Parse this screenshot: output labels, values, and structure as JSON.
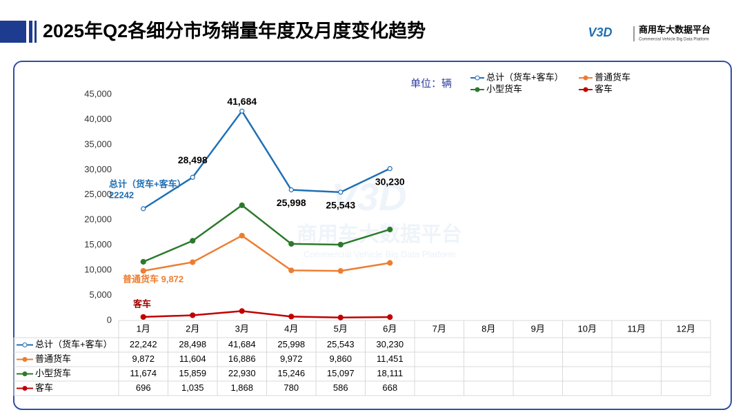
{
  "chart_data": {
    "type": "line",
    "title": "2025年Q2各细分市场销量年度及月度变化趋势",
    "unit_label": "单位：辆",
    "logo": {
      "name": "商用车大数据平台",
      "subtitle": "Commercial Vehicle Big Data Platform",
      "mark": "V3D"
    },
    "categories": [
      "1月",
      "2月",
      "3月",
      "4月",
      "5月",
      "6月",
      "7月",
      "8月",
      "9月",
      "10月",
      "11月",
      "12月"
    ],
    "ylim": [
      0,
      45000
    ],
    "yticks": [
      0,
      {
        "value": 5000,
        "label": "5,000"
      },
      {
        "value": 10000,
        "label": "10,000"
      },
      {
        "value": 15000,
        "label": "15,000"
      },
      {
        "value": 20000,
        "label": "20,000"
      },
      {
        "value": 25000,
        "label": "25,000"
      },
      {
        "value": 30000,
        "label": "30,000"
      },
      {
        "value": 35000,
        "label": "35,000"
      },
      {
        "value": 40000,
        "label": "40,000"
      },
      {
        "value": 45000,
        "label": "45,000"
      }
    ],
    "grid": false,
    "legend": "top-right",
    "series": [
      {
        "name": "总计（货车+客车）",
        "color": "#1f6fb5",
        "hollow": true,
        "values": [
          22242,
          28498,
          41684,
          25998,
          25543,
          30230,
          null,
          null,
          null,
          null,
          null,
          null
        ],
        "value_labels": [
          "22,242",
          "28,498",
          "41,684",
          "25,998",
          "25,543",
          "30,230",
          null,
          null,
          null,
          null,
          null,
          null
        ]
      },
      {
        "name": "普通货车",
        "color": "#ed7d31",
        "hollow": false,
        "values": [
          9872,
          11604,
          16886,
          9972,
          9860,
          11451,
          null,
          null,
          null,
          null,
          null,
          null
        ],
        "value_labels": [
          "9,872",
          "11,604",
          "16,886",
          "9,972",
          "9,860",
          "11,451",
          null,
          null,
          null,
          null,
          null,
          null
        ]
      },
      {
        "name": "小型货车",
        "color": "#2b7a2b",
        "hollow": false,
        "values": [
          11674,
          15859,
          22930,
          15246,
          15097,
          18111,
          null,
          null,
          null,
          null,
          null,
          null
        ],
        "value_labels": [
          "11,674",
          "15,859",
          "22,930",
          "15,246",
          "15,097",
          "18,111",
          null,
          null,
          null,
          null,
          null,
          null
        ]
      },
      {
        "name": "客车",
        "color": "#c00000",
        "hollow": false,
        "values": [
          696,
          1035,
          1868,
          780,
          586,
          668,
          null,
          null,
          null,
          null,
          null,
          null
        ],
        "value_labels": [
          "696",
          "1,035",
          "1,868",
          "780",
          "586",
          "668",
          null,
          null,
          null,
          null,
          null,
          null
        ]
      }
    ],
    "annotations": [
      "总计（货车+客车）",
      "22242",
      "普通货车 9,872",
      "客车"
    ]
  }
}
